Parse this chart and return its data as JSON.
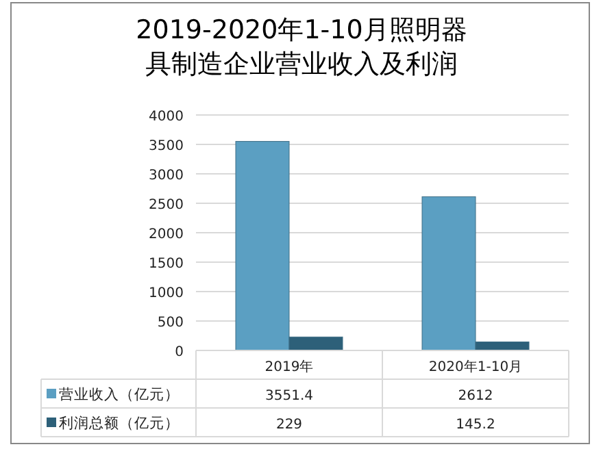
{
  "chart_data": {
    "type": "bar",
    "title": "2019-2020年1-10月照明器具制造企业营业收入及利润",
    "categories": [
      "2019年",
      "2020年1-10月"
    ],
    "series": [
      {
        "name": "营业收入（亿元）",
        "color": "#5b9fc2",
        "values": [
          3551.4,
          2612
        ]
      },
      {
        "name": "利润总额（亿元）",
        "color": "#2d6079",
        "values": [
          229,
          145.2
        ]
      }
    ],
    "ylim": [
      0,
      4000
    ],
    "yticks": [
      0,
      500,
      1000,
      1500,
      2000,
      2500,
      3000,
      3500,
      4000
    ],
    "grid": "y",
    "legend": "bottom",
    "data_labels": true
  }
}
